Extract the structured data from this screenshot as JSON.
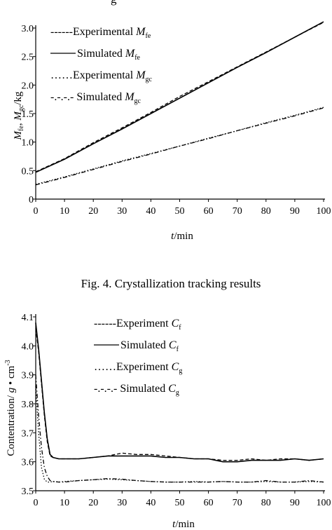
{
  "top_fragment": "g",
  "caption": "Fig. 4. Crystallization tracking results",
  "chart_data": [
    {
      "type": "line",
      "title": "",
      "xlabel": "t/min",
      "xlabel_parts": {
        "var": "t",
        "unit": "/min"
      },
      "ylabel": "M_fe, M_gc/kg",
      "ylabel_parts": {
        "v1": "M",
        "s1": "fe",
        "sep": ", ",
        "v2": "M",
        "s2": "gc",
        "unit": "/kg"
      },
      "xlim": [
        0,
        100
      ],
      "ylim": [
        0,
        3.0
      ],
      "xticks": [
        "0",
        "10",
        "20",
        "30",
        "40",
        "50",
        "60",
        "70",
        "80",
        "90",
        "100"
      ],
      "yticks": [
        "0",
        "0.5",
        "1.0",
        "1.5",
        "2.0",
        "2.5",
        "3.0"
      ],
      "grid": false,
      "legend_position": "top-left",
      "legend": [
        {
          "prefix": "------",
          "text": "Experimental ",
          "var": "M",
          "sub": "fe"
        },
        {
          "prefix": "",
          "text": "Simulated ",
          "var": "M",
          "sub": "fe"
        },
        {
          "prefix": "……",
          "text": "Experimental ",
          "var": "M",
          "sub": "gc"
        },
        {
          "prefix": "-.-.-.- ",
          "text": "Simulated ",
          "var": "M",
          "sub": "gc"
        }
      ],
      "series": [
        {
          "name": "Experimental M_fe",
          "style": "dashed",
          "x": [
            0,
            10,
            20,
            30,
            40,
            50,
            60,
            70,
            80,
            90,
            100
          ],
          "y": [
            0.48,
            0.71,
            0.99,
            1.25,
            1.52,
            1.8,
            2.06,
            2.32,
            2.58,
            2.84,
            3.1
          ]
        },
        {
          "name": "Simulated M_fe",
          "style": "solid",
          "x": [
            0,
            10,
            20,
            30,
            40,
            50,
            60,
            70,
            80,
            90,
            100
          ],
          "y": [
            0.47,
            0.7,
            0.97,
            1.23,
            1.5,
            1.77,
            2.04,
            2.31,
            2.57,
            2.84,
            3.11
          ]
        },
        {
          "name": "Experimental M_gc",
          "style": "dotted",
          "x": [
            0,
            10,
            20,
            30,
            40,
            50,
            60,
            70,
            80,
            90,
            100
          ],
          "y": [
            0.26,
            0.39,
            0.53,
            0.67,
            0.8,
            0.93,
            1.07,
            1.2,
            1.34,
            1.47,
            1.61
          ]
        },
        {
          "name": "Simulated M_gc",
          "style": "dashdot",
          "x": [
            0,
            10,
            20,
            30,
            40,
            50,
            60,
            70,
            80,
            90,
            100
          ],
          "y": [
            0.25,
            0.38,
            0.52,
            0.66,
            0.79,
            0.93,
            1.06,
            1.2,
            1.33,
            1.46,
            1.6
          ]
        }
      ]
    },
    {
      "type": "line",
      "title": "",
      "xlabel": "t/min",
      "xlabel_parts": {
        "var": "t",
        "unit": "/min"
      },
      "ylabel": "Contentration/ g • cm^-3",
      "ylabel_parts": {
        "main": "Contentration/ ",
        "g": "g",
        "dot": " • ",
        "cm": "cm",
        "exp": "-3"
      },
      "xlim": [
        0,
        100
      ],
      "ylim": [
        3.5,
        4.1
      ],
      "xticks": [
        "0",
        "10",
        "20",
        "30",
        "40",
        "50",
        "60",
        "70",
        "80",
        "90",
        "100"
      ],
      "yticks": [
        "3.5",
        "3.6",
        "3.7",
        "3.8",
        "3.9",
        "4.0",
        "4.1"
      ],
      "grid": false,
      "legend_position": "top-center",
      "legend": [
        {
          "prefix": "------",
          "text": "Experiment ",
          "var": "C",
          "sub": "f"
        },
        {
          "prefix": "",
          "text": "Simulated ",
          "var": "C",
          "sub": "f"
        },
        {
          "prefix": "……",
          "text": "Experiment ",
          "var": "C",
          "sub": "g"
        },
        {
          "prefix": "-.-.-.- ",
          "text": "Simulated ",
          "var": "C",
          "sub": "g"
        }
      ],
      "series": [
        {
          "name": "Experiment C_f",
          "style": "dashed",
          "x": [
            0,
            1,
            2,
            3,
            4,
            5,
            6,
            8,
            10,
            15,
            20,
            25,
            30,
            35,
            40,
            45,
            50,
            55,
            60,
            65,
            70,
            75,
            80,
            85,
            90,
            95,
            100
          ],
          "y": [
            4.06,
            3.98,
            3.87,
            3.76,
            3.67,
            3.62,
            3.615,
            3.61,
            3.61,
            3.61,
            3.615,
            3.62,
            3.63,
            3.625,
            3.625,
            3.62,
            3.615,
            3.61,
            3.61,
            3.605,
            3.605,
            3.61,
            3.605,
            3.61,
            3.61,
            3.605,
            3.61
          ]
        },
        {
          "name": "Simulated C_f",
          "style": "solid",
          "x": [
            0,
            1,
            2,
            3,
            4,
            5,
            6,
            8,
            10,
            15,
            20,
            25,
            30,
            35,
            40,
            45,
            50,
            55,
            60,
            65,
            70,
            75,
            80,
            85,
            90,
            95,
            100
          ],
          "y": [
            4.08,
            3.99,
            3.88,
            3.77,
            3.68,
            3.625,
            3.615,
            3.61,
            3.61,
            3.61,
            3.615,
            3.62,
            3.62,
            3.62,
            3.62,
            3.615,
            3.615,
            3.61,
            3.61,
            3.6,
            3.6,
            3.605,
            3.605,
            3.605,
            3.61,
            3.605,
            3.61
          ]
        },
        {
          "name": "Experiment C_g",
          "style": "dotted",
          "x": [
            0,
            1,
            2,
            3,
            4,
            5,
            6,
            8,
            10,
            15,
            20,
            25,
            30,
            35,
            40,
            45,
            50,
            55,
            60,
            65,
            70,
            75,
            80,
            85,
            90,
            95,
            100
          ],
          "y": [
            3.86,
            3.7,
            3.58,
            3.54,
            3.53,
            3.53,
            3.532,
            3.53,
            3.532,
            3.535,
            3.538,
            3.54,
            3.538,
            3.535,
            3.532,
            3.53,
            3.53,
            3.532,
            3.53,
            3.532,
            3.53,
            3.53,
            3.532,
            3.53,
            3.53,
            3.532,
            3.53
          ]
        },
        {
          "name": "Simulated C_g",
          "style": "dashdot",
          "x": [
            0,
            1,
            2,
            3,
            4,
            5,
            6,
            8,
            10,
            15,
            20,
            25,
            30,
            35,
            40,
            45,
            50,
            55,
            60,
            65,
            70,
            75,
            80,
            85,
            90,
            95,
            100
          ],
          "y": [
            3.9,
            3.76,
            3.65,
            3.58,
            3.55,
            3.535,
            3.532,
            3.53,
            3.53,
            3.535,
            3.538,
            3.542,
            3.54,
            3.535,
            3.532,
            3.53,
            3.53,
            3.53,
            3.53,
            3.532,
            3.53,
            3.53,
            3.535,
            3.53,
            3.53,
            3.535,
            3.53
          ]
        }
      ]
    }
  ]
}
